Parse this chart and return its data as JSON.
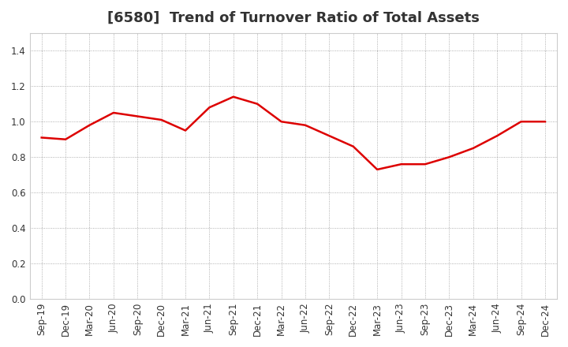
{
  "title": "[6580]  Trend of Turnover Ratio of Total Assets",
  "labels": [
    "Sep-19",
    "Dec-19",
    "Mar-20",
    "Jun-20",
    "Sep-20",
    "Dec-20",
    "Mar-21",
    "Jun-21",
    "Sep-21",
    "Dec-21",
    "Mar-22",
    "Jun-22",
    "Sep-22",
    "Dec-22",
    "Mar-23",
    "Jun-23",
    "Sep-23",
    "Dec-23",
    "Mar-24",
    "Jun-24",
    "Sep-24",
    "Dec-24"
  ],
  "values": [
    0.91,
    0.9,
    0.98,
    1.05,
    1.03,
    1.01,
    0.95,
    1.08,
    1.14,
    1.1,
    1.0,
    0.98,
    0.92,
    0.86,
    0.73,
    0.76,
    0.76,
    0.8,
    0.85,
    0.92,
    1.0,
    1.0
  ],
  "line_color": "#dd0000",
  "line_width": 1.8,
  "ylim": [
    0.0,
    1.5
  ],
  "yticks": [
    0.0,
    0.2,
    0.4,
    0.6,
    0.8,
    1.0,
    1.2,
    1.4
  ],
  "grid_color": "#999999",
  "grid_linestyle": ":",
  "grid_linewidth": 0.6,
  "background_color": "#ffffff",
  "title_fontsize": 13,
  "title_color": "#333333",
  "tick_fontsize": 8.5,
  "tick_color": "#333333"
}
